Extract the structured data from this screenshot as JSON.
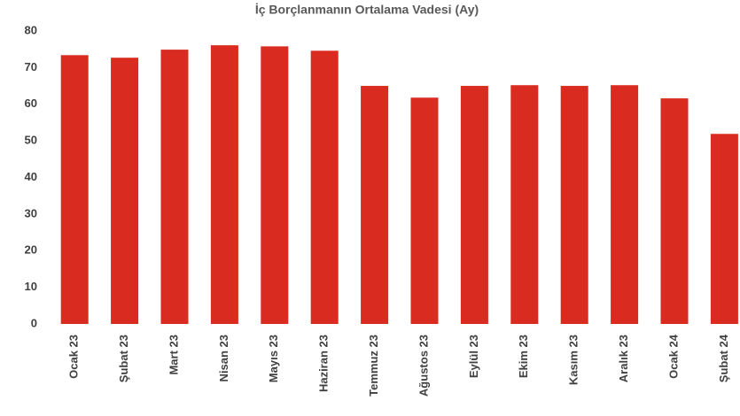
{
  "chart_data": {
    "type": "bar",
    "title": "İç Borçlanmanın Ortalama Vadesi (Ay)",
    "categories": [
      "Ocak 23",
      "Şubat 23",
      "Mart 23",
      "Nisan 23",
      "Mayıs 23",
      "Haziran 23",
      "Temmuz 23",
      "Ağustos 23",
      "Eylül 23",
      "Ekim 23",
      "Kasım 23",
      "Aralık 23",
      "Ocak 24",
      "Şubat 24"
    ],
    "values": [
      73.4,
      72.7,
      74.9,
      76.1,
      75.8,
      74.6,
      65.0,
      61.8,
      65.0,
      65.2,
      65.0,
      65.2,
      61.6,
      51.9
    ],
    "color": "#d92b1f",
    "ylim": [
      0,
      80
    ],
    "yticks": [
      0,
      10,
      20,
      30,
      40,
      50,
      60,
      70,
      80
    ],
    "grid": false
  }
}
